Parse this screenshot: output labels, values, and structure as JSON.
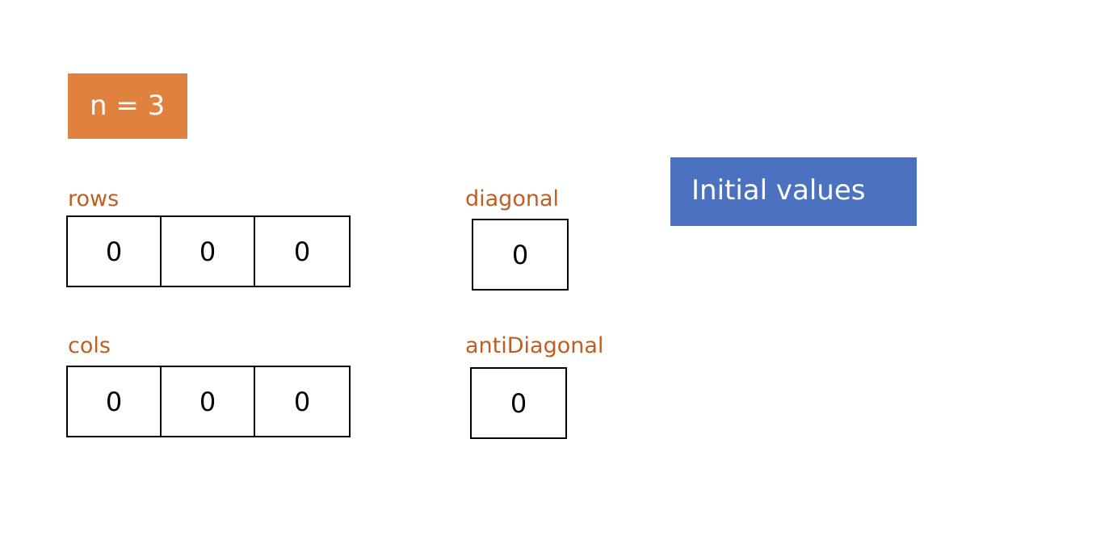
{
  "n_label": "n = 3",
  "title": "Initial values",
  "rows": {
    "label": "rows",
    "values": [
      "0",
      "0",
      "0"
    ]
  },
  "cols": {
    "label": "cols",
    "values": [
      "0",
      "0",
      "0"
    ]
  },
  "diagonal": {
    "label": "diagonal",
    "value": "0"
  },
  "antiDiagonal": {
    "label": "antiDiagonal",
    "value": "0"
  },
  "colors": {
    "n_badge": "#e0823f",
    "title_badge": "#4a72c0",
    "label_text": "#bd5e24"
  }
}
